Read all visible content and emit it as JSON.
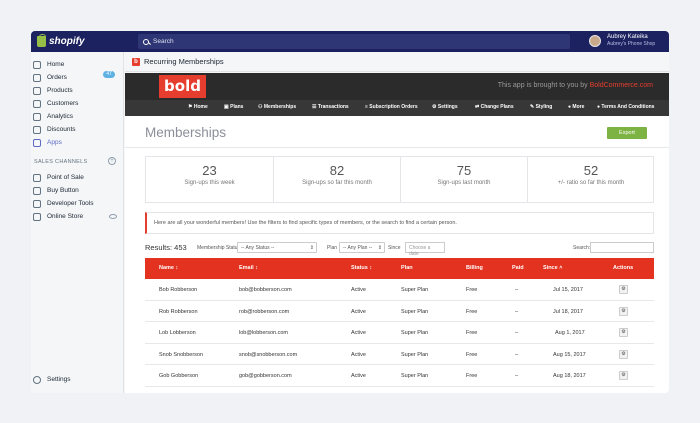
{
  "topbar": {
    "brand": "shopify",
    "search_placeholder": "Search",
    "user_name": "Aubrey Kateika",
    "shop_name": "Aubrey's Phone Shop"
  },
  "sidebar": {
    "items": [
      {
        "label": "Home",
        "icon": "home-icon"
      },
      {
        "label": "Orders",
        "icon": "orders-icon",
        "badge": "47"
      },
      {
        "label": "Products",
        "icon": "tag-icon"
      },
      {
        "label": "Customers",
        "icon": "person-icon"
      },
      {
        "label": "Analytics",
        "icon": "chart-icon"
      },
      {
        "label": "Discounts",
        "icon": "discount-icon"
      },
      {
        "label": "Apps",
        "icon": "apps-icon",
        "active": true
      }
    ],
    "sales_channels_title": "SALES CHANNELS",
    "channels": [
      {
        "label": "Point of Sale"
      },
      {
        "label": "Buy Button"
      },
      {
        "label": "Developer Tools"
      },
      {
        "label": "Online Store"
      }
    ],
    "settings_label": "Settings"
  },
  "app": {
    "header_title": "Recurring Memberships",
    "logo_text": "bold",
    "brought_text": "This app is brought to you by ",
    "brought_brand": "BoldCommerce.com",
    "menu": [
      {
        "label": "⚑ Home"
      },
      {
        "label": "▣ Plans"
      },
      {
        "label": "⚇ Memberships"
      },
      {
        "label": "☰ Transactions"
      },
      {
        "label": "≡ Subscription Orders"
      },
      {
        "label": "⚙ Settings"
      },
      {
        "label": "⇄ Change Plans"
      },
      {
        "label": "✎ Styling"
      },
      {
        "label": "● More"
      },
      {
        "label": "● Terms And Conditions"
      }
    ]
  },
  "page": {
    "title": "Memberships",
    "export_label": "Export",
    "stats": [
      {
        "value": "23",
        "label": "Sign-ups this week"
      },
      {
        "value": "82",
        "label": "Sign-ups so far this month"
      },
      {
        "value": "75",
        "label": "Sign-ups last month"
      },
      {
        "value": "52",
        "label": "+/- ratio so far this month"
      }
    ],
    "notice": "Here are all your wonderful members! Use the filters to find specific types of members, or the search to find a certain person.",
    "results_label": "Results: 453",
    "filter_status_label": "Membership Status",
    "filter_status_value": "-- Any Status --",
    "filter_plan_label": "Plan",
    "filter_plan_value": "-- Any Plan --",
    "filter_since_label": "Since",
    "filter_since_placeholder": "Choose a date",
    "search_label": "Search:"
  },
  "table": {
    "headers": {
      "name": "Name ↕",
      "email": "Email ↕",
      "status": "Status ↕",
      "plan": "Plan",
      "billing": "Billing",
      "paid": "Paid",
      "since": "Since ˄",
      "actions": "Actions"
    },
    "rows": [
      {
        "name": "Bob Robberson",
        "email": "bob@bobberson.com",
        "status": "Active",
        "plan": "Super Plan",
        "billing": "Free",
        "paid": "–",
        "since": "Jul 15, 2017"
      },
      {
        "name": "Rob Robberson",
        "email": "rob@robberson.com",
        "status": "Active",
        "plan": "Super Plan",
        "billing": "Free",
        "paid": "–",
        "since": "Jul 18, 2017"
      },
      {
        "name": "Lob Lobberson",
        "email": "lob@lobberson.com",
        "status": "Active",
        "plan": "Super Plan",
        "billing": "Free",
        "paid": "–",
        "since": "Aug 1, 2017"
      },
      {
        "name": "Snob Snobberson",
        "email": "snob@snobberson.com",
        "status": "Active",
        "plan": "Super Plan",
        "billing": "Free",
        "paid": "–",
        "since": "Aug 15, 2017"
      },
      {
        "name": "Gob Gobberson",
        "email": "gob@gobberson.com",
        "status": "Active",
        "plan": "Super Plan",
        "billing": "Free",
        "paid": "–",
        "since": "Aug 18, 2017"
      }
    ]
  },
  "colors": {
    "topbar": "#1c2260",
    "accent_red": "#e3321f",
    "export_green": "#7cb342",
    "active_nav": "#5c6ac4"
  }
}
